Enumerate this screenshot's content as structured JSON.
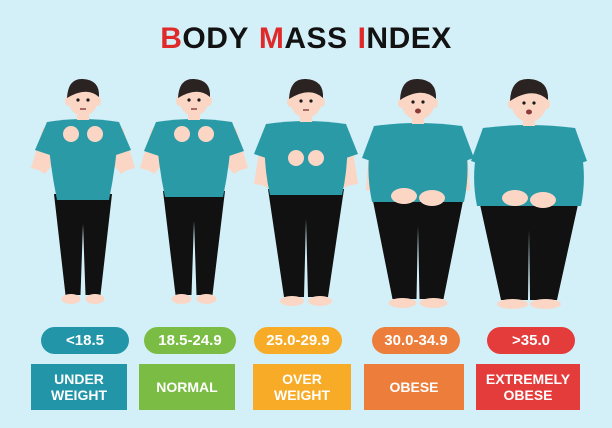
{
  "title": {
    "segments": [
      {
        "first": "B",
        "rest": "ODY"
      },
      {
        "first": "M",
        "rest": "ASS"
      },
      {
        "first": "I",
        "rest": "NDEX"
      }
    ],
    "accent_color": "#e02a2a"
  },
  "categories": [
    {
      "range": "<18.5",
      "label_lines": [
        "UNDER",
        "WEIGHT"
      ],
      "color": "#2296a8"
    },
    {
      "range": "18.5-24.9",
      "label_lines": [
        "NORMAL"
      ],
      "color": "#7bbd44"
    },
    {
      "range": "25.0-29.9",
      "label_lines": [
        "OVER",
        "WEIGHT"
      ],
      "color": "#f7ab26"
    },
    {
      "range": "30.0-34.9",
      "label_lines": [
        "OBESE"
      ],
      "color": "#ec7d3a"
    },
    {
      "range": ">35.0",
      "label_lines": [
        "EXTREMELY",
        "OBESE"
      ],
      "color": "#e43b3b"
    }
  ],
  "colors": {
    "background": "#d3f0f9",
    "shirt": "#2b9aa7",
    "pants": "#111111",
    "skin": "#fbd6c4",
    "hair": "#2b2222"
  }
}
